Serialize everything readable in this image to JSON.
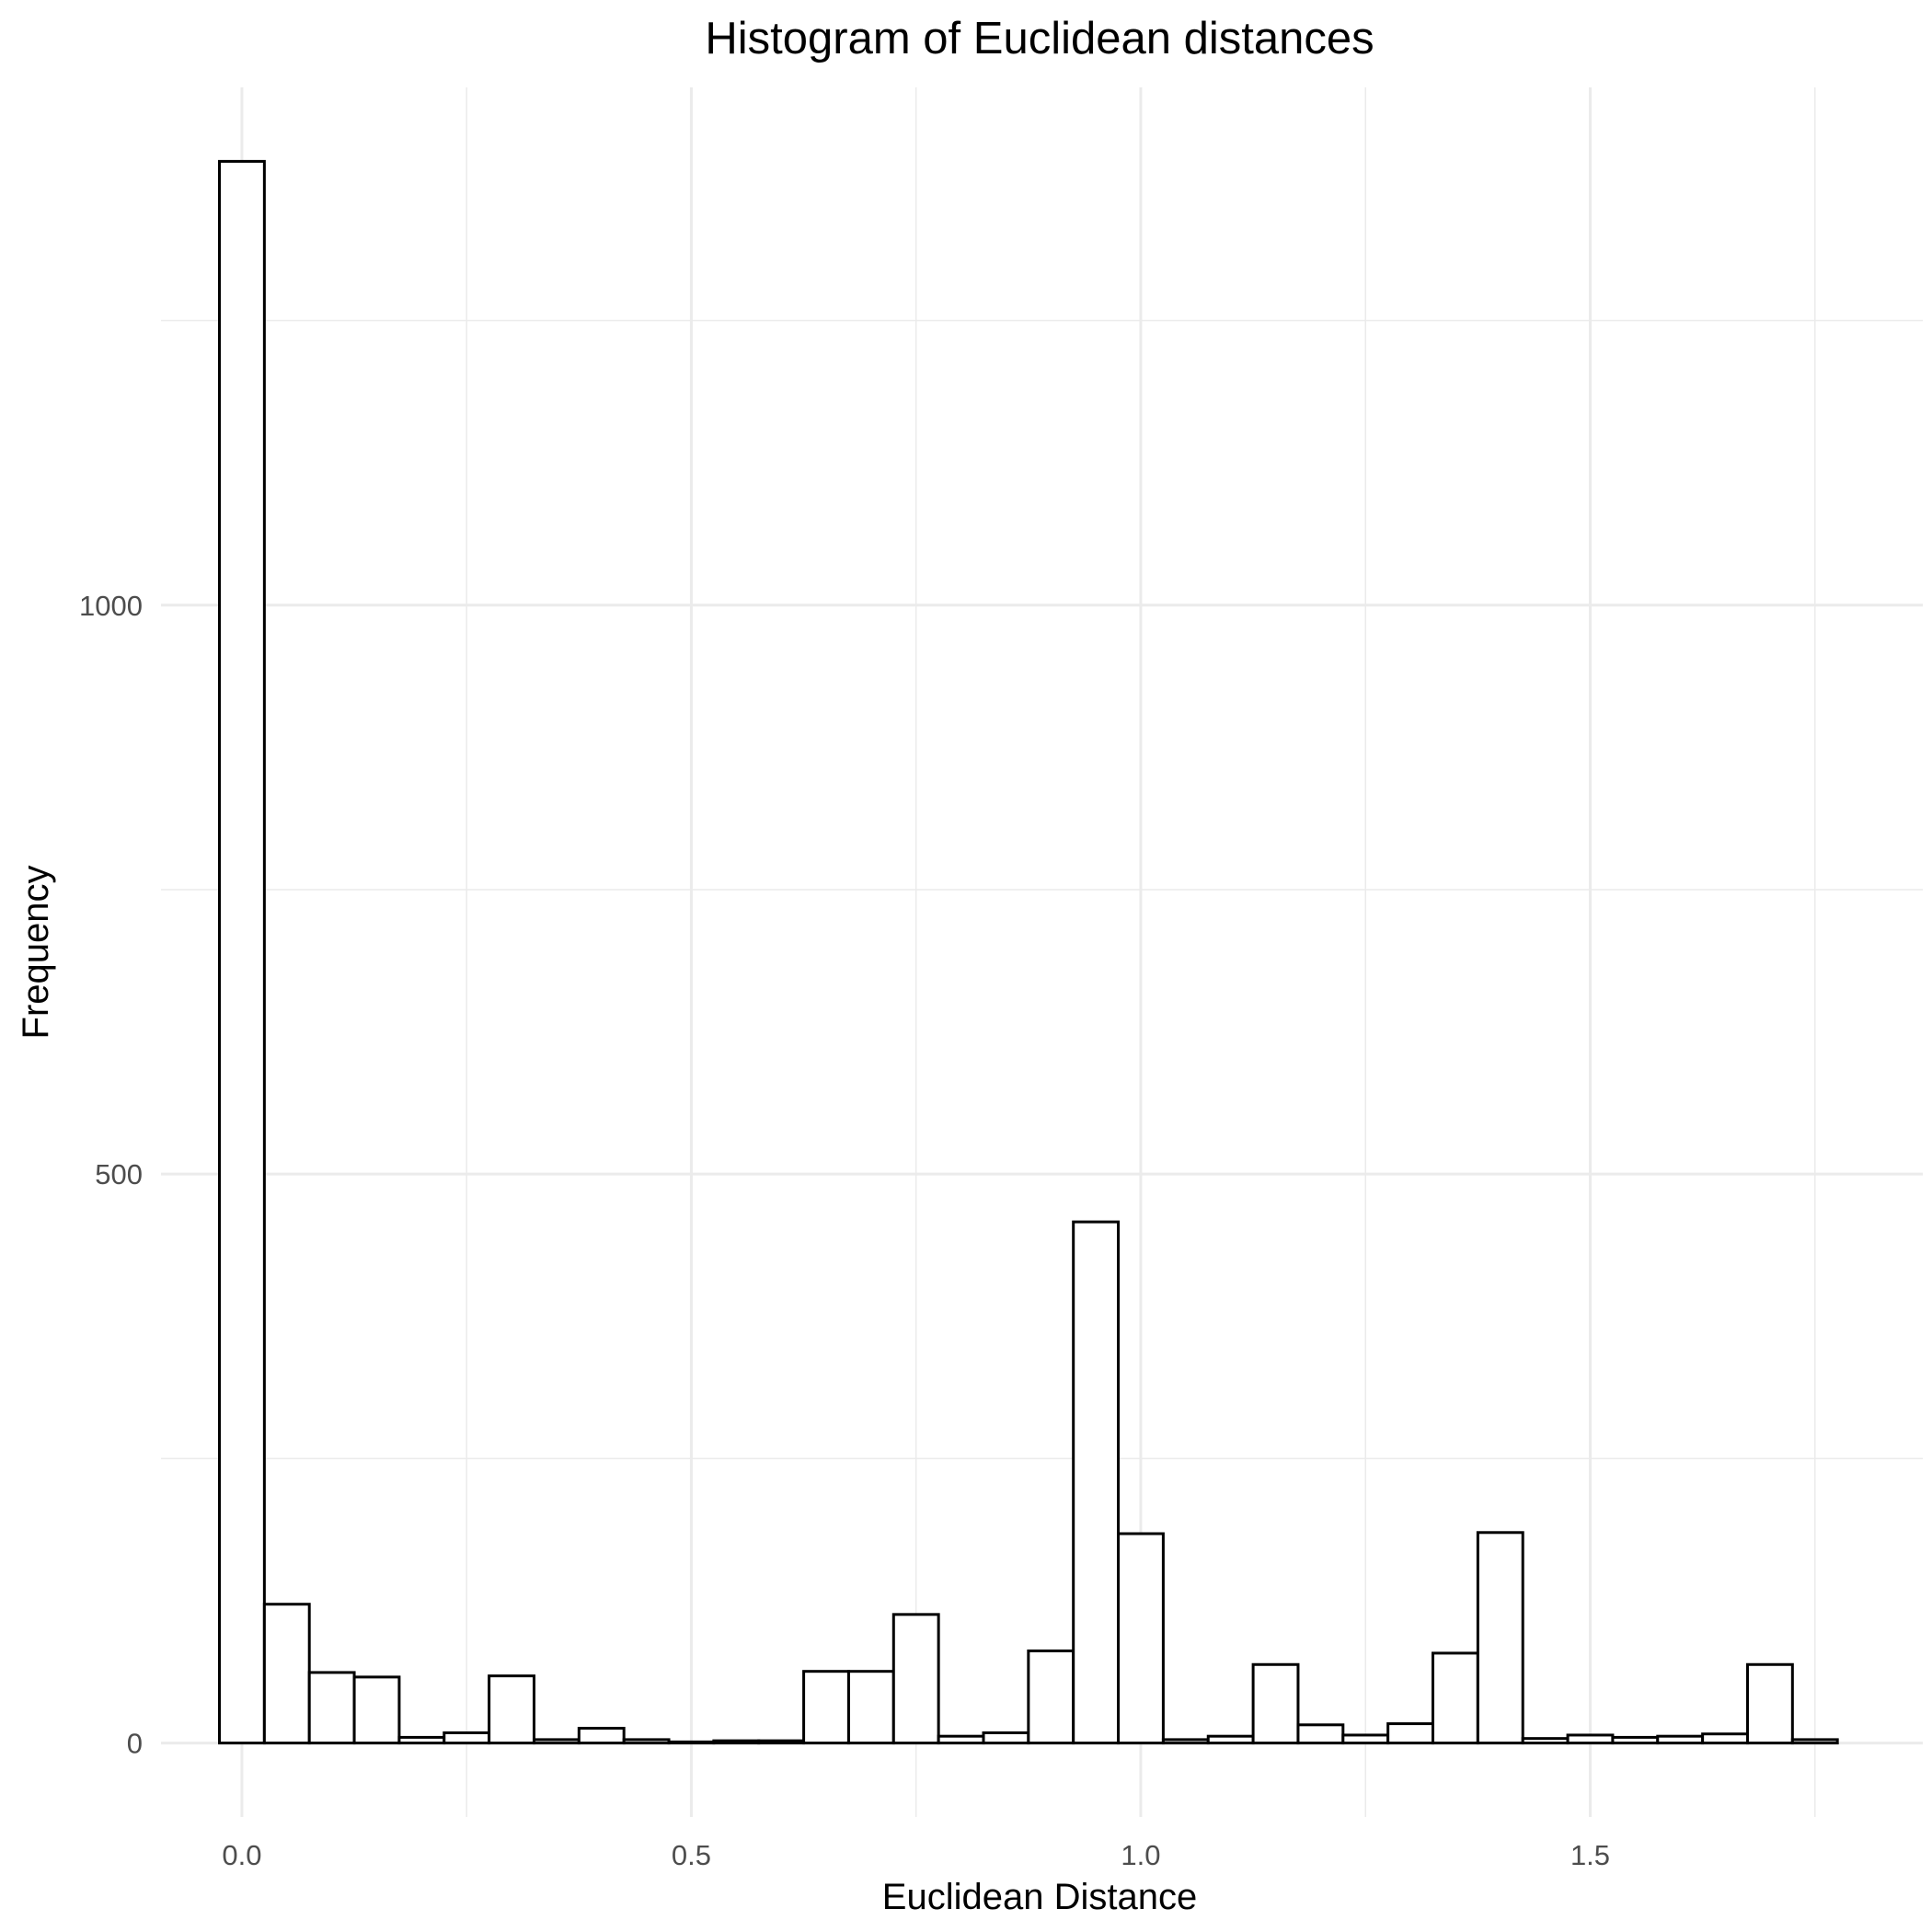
{
  "chart_data": {
    "type": "bar",
    "title": "Histogram of Euclidean distances",
    "xlabel": "Euclidean Distance",
    "ylabel": "Frequency",
    "bin_width": 0.05,
    "x_bins_start": [
      -0.025,
      0.025,
      0.075,
      0.125,
      0.175,
      0.225,
      0.275,
      0.325,
      0.375,
      0.425,
      0.475,
      0.525,
      0.575,
      0.625,
      0.675,
      0.725,
      0.775,
      0.825,
      0.875,
      0.925,
      0.975,
      1.025,
      1.075,
      1.125,
      1.175,
      1.225,
      1.275,
      1.325,
      1.375,
      1.425,
      1.475,
      1.525,
      1.575,
      1.625,
      1.675,
      1.725
    ],
    "values": [
      1390,
      122,
      62,
      58,
      5,
      9,
      59,
      3,
      13,
      3,
      1,
      2,
      2,
      63,
      63,
      113,
      6,
      9,
      81,
      458,
      184,
      3,
      6,
      69,
      16,
      7,
      17,
      79,
      185,
      4,
      7,
      5,
      6,
      8,
      69,
      3
    ],
    "xlim": [
      -0.09,
      1.87
    ],
    "ylim": [
      -65,
      1455
    ],
    "x_ticks": [
      0.0,
      0.5,
      1.0,
      1.5
    ],
    "x_tick_labels": [
      "0.0",
      "0.5",
      "1.0",
      "1.5"
    ],
    "x_minor_ticks": [
      0.25,
      0.75,
      1.25,
      1.75
    ],
    "y_ticks": [
      0,
      500,
      1000
    ],
    "y_tick_labels": [
      "0",
      "500",
      "1000"
    ],
    "y_minor_ticks": [
      250,
      750,
      1250
    ],
    "grid": true,
    "legend": "none",
    "colors": {
      "bar_fill": "#ffffff",
      "bar_stroke": "#000000",
      "grid": "#ebebeb",
      "tick_text": "#4d4d4d",
      "text": "#000000"
    }
  }
}
